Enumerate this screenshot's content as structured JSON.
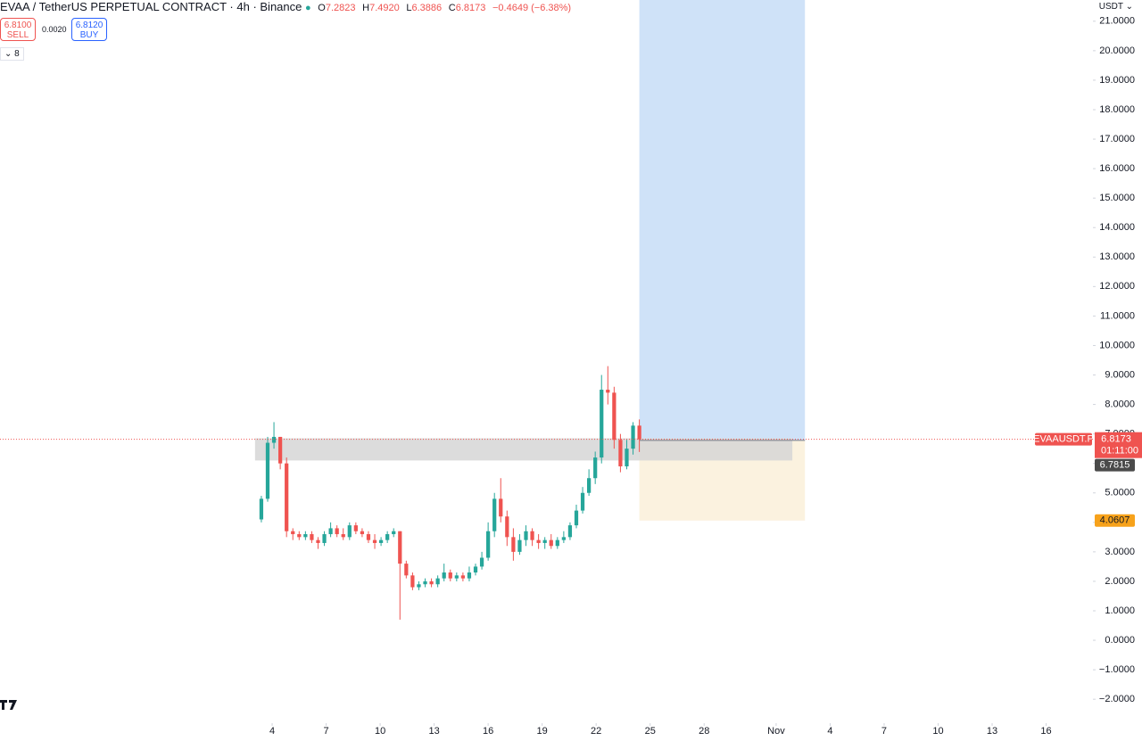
{
  "chart_data": {
    "type": "candlestick",
    "title": "EVAA / TetherUS PERPETUAL CONTRACT · 4h · Binance",
    "ohlc_legend": [
      {
        "label": "O",
        "text": "7.2823"
      },
      {
        "label": "H",
        "text": "7.4920"
      },
      {
        "label": "L",
        "text": "6.3886"
      },
      {
        "label": "C",
        "text": "6.8173"
      }
    ],
    "change_text": "−0.4649 (−6.38%)",
    "sell": {
      "price": "6.8100",
      "label": "SELL"
    },
    "buy": {
      "price": "6.8120",
      "label": "BUY"
    },
    "spread": "0.0020",
    "indicator_count": "8",
    "currency": "USDT",
    "up_color": "#26a69a",
    "down_color": "#ef5350",
    "x": [
      -0.6,
      -0.25,
      0.1,
      0.45,
      0.8,
      1.15,
      1.5,
      1.85,
      2.2,
      2.55,
      2.9,
      3.25,
      3.6,
      3.95,
      4.3,
      4.65,
      5.0,
      5.35,
      5.7,
      6.05,
      6.4,
      6.75,
      7.1,
      7.45,
      7.8,
      8.15,
      8.5,
      8.85,
      9.2,
      9.55,
      9.9,
      10.25,
      10.6,
      10.95,
      11.3,
      11.65,
      12.0,
      12.35,
      12.7,
      13.05,
      13.4,
      13.75,
      14.1,
      14.45,
      14.8,
      15.15,
      15.5,
      15.85,
      16.2,
      16.55,
      16.9,
      17.25,
      17.6,
      17.95,
      18.3,
      18.65,
      19.0,
      19.35,
      19.7,
      20.05,
      20.4
    ],
    "open": [
      4.1,
      4.8,
      6.7,
      6.9,
      6.0,
      3.7,
      3.6,
      3.5,
      3.6,
      3.4,
      3.3,
      3.6,
      3.8,
      3.6,
      3.5,
      3.9,
      3.7,
      3.6,
      3.4,
      3.3,
      3.4,
      3.6,
      3.7,
      2.6,
      2.2,
      1.8,
      1.9,
      2.0,
      1.9,
      2.1,
      2.3,
      2.1,
      2.2,
      2.1,
      2.3,
      2.5,
      2.8,
      3.7,
      4.8,
      4.2,
      3.5,
      3.0,
      3.4,
      3.7,
      3.4,
      3.3,
      3.4,
      3.2,
      3.4,
      3.5,
      3.9,
      4.4,
      5.0,
      5.5,
      6.2,
      8.5,
      8.4,
      6.8,
      5.9,
      6.5,
      7.2823
    ],
    "high": [
      4.9,
      6.9,
      7.4,
      6.9,
      6.2,
      3.8,
      3.7,
      3.7,
      3.7,
      3.5,
      3.7,
      4.0,
      3.9,
      3.8,
      4.0,
      4.0,
      3.8,
      3.7,
      3.6,
      3.5,
      3.7,
      3.8,
      3.7,
      2.7,
      2.3,
      2.0,
      2.1,
      2.1,
      2.2,
      2.6,
      2.4,
      2.3,
      2.3,
      2.5,
      2.6,
      3.0,
      4.0,
      5.0,
      5.5,
      4.4,
      3.8,
      3.6,
      3.9,
      3.8,
      3.6,
      3.5,
      3.6,
      3.5,
      3.7,
      4.0,
      4.6,
      5.2,
      5.8,
      6.4,
      9.0,
      9.3,
      8.6,
      7.0,
      6.8,
      7.4,
      7.492
    ],
    "low": [
      4.0,
      4.7,
      6.5,
      5.8,
      3.5,
      3.4,
      3.4,
      3.4,
      3.3,
      3.1,
      3.2,
      3.5,
      3.5,
      3.4,
      3.4,
      3.6,
      3.5,
      3.3,
      3.1,
      3.2,
      3.3,
      3.5,
      0.7,
      2.1,
      1.7,
      1.7,
      1.8,
      1.8,
      1.8,
      2.0,
      2.0,
      2.0,
      2.0,
      2.0,
      2.2,
      2.4,
      2.7,
      3.5,
      4.0,
      3.2,
      2.7,
      2.9,
      3.2,
      3.2,
      3.1,
      3.1,
      3.1,
      3.1,
      3.3,
      3.4,
      3.8,
      4.3,
      4.9,
      5.3,
      6.0,
      8.0,
      6.5,
      5.7,
      5.8,
      6.3,
      6.3886
    ],
    "close": [
      4.8,
      6.7,
      6.9,
      6.0,
      3.7,
      3.6,
      3.5,
      3.6,
      3.4,
      3.3,
      3.6,
      3.8,
      3.6,
      3.5,
      3.9,
      3.7,
      3.6,
      3.4,
      3.3,
      3.4,
      3.6,
      3.7,
      2.6,
      2.2,
      1.8,
      1.9,
      2.0,
      1.9,
      2.1,
      2.3,
      2.1,
      2.2,
      2.1,
      2.3,
      2.5,
      2.8,
      3.7,
      4.8,
      4.2,
      3.5,
      3.0,
      3.4,
      3.7,
      3.4,
      3.3,
      3.4,
      3.2,
      3.4,
      3.5,
      3.9,
      4.4,
      5.0,
      5.5,
      6.2,
      8.5,
      8.4,
      6.8,
      5.9,
      6.5,
      7.2823,
      6.8173
    ],
    "xlim": [
      -15.12,
      45.6
    ],
    "xticks": [
      {
        "value": 0,
        "label": "4"
      },
      {
        "value": 3,
        "label": "7"
      },
      {
        "value": 6,
        "label": "10"
      },
      {
        "value": 9,
        "label": "13"
      },
      {
        "value": 12,
        "label": "16"
      },
      {
        "value": 15,
        "label": "19"
      },
      {
        "value": 18,
        "label": "22"
      },
      {
        "value": 21,
        "label": "25"
      },
      {
        "value": 24,
        "label": "28"
      },
      {
        "value": 28,
        "label": "Nov"
      },
      {
        "value": 31,
        "label": "4"
      },
      {
        "value": 34,
        "label": "7"
      },
      {
        "value": 37,
        "label": "10"
      },
      {
        "value": 40,
        "label": "13"
      },
      {
        "value": 43,
        "label": "16"
      }
    ],
    "ylim": [
      -2.63,
      21.72
    ],
    "yticks": [
      {
        "value": -2,
        "label": "−2.0000"
      },
      {
        "value": -1,
        "label": "−1.0000"
      },
      {
        "value": 0,
        "label": "0.0000"
      },
      {
        "value": 1,
        "label": "1.0000"
      },
      {
        "value": 2,
        "label": "2.0000"
      },
      {
        "value": 3,
        "label": "3.0000"
      },
      {
        "value": 4,
        "label": "4.0000"
      },
      {
        "value": 5,
        "label": "5.0000"
      },
      {
        "value": 6,
        "label": "6.0000"
      },
      {
        "value": 7,
        "label": "7.0000"
      },
      {
        "value": 8,
        "label": "8.0000"
      },
      {
        "value": 9,
        "label": "9.0000"
      },
      {
        "value": 10,
        "label": "10.0000"
      },
      {
        "value": 11,
        "label": "11.0000"
      },
      {
        "value": 12,
        "label": "12.0000"
      },
      {
        "value": 13,
        "label": "13.0000"
      },
      {
        "value": 14,
        "label": "14.0000"
      },
      {
        "value": 15,
        "label": "15.0000"
      },
      {
        "value": 16,
        "label": "16.0000"
      },
      {
        "value": 17,
        "label": "17.0000"
      },
      {
        "value": 18,
        "label": "18.0000"
      },
      {
        "value": 19,
        "label": "19.0000"
      },
      {
        "value": 20,
        "label": "20.0000"
      },
      {
        "value": 21,
        "label": "21.0000"
      }
    ],
    "zone": {
      "x": [
        -0.95,
        28.9
      ],
      "y": [
        6.1,
        6.85
      ],
      "color": "#d6d6d6"
    },
    "position": {
      "x": [
        20.4,
        29.6
      ],
      "entry": 6.7815,
      "stop": {
        "value": 4.0607,
        "label": "4.0607"
      },
      "entry_label": "6.7815",
      "profit_color": "#cfe2f8",
      "loss_color": "#fbf2df"
    },
    "last_price": {
      "value": 6.8173,
      "label": "6.8173",
      "symbol": "EVAAUSDT.P",
      "countdown": "01:11:00"
    }
  }
}
